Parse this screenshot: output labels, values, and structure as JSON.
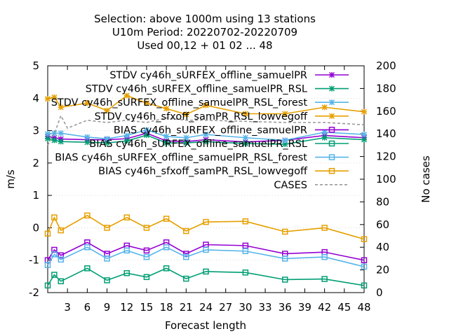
{
  "chart_data": {
    "type": "line",
    "title_lines": [
      "Selection: above 1000m using    13 stations",
      "U10m   Period: 20220702-20220709",
      "Used  00,12  + 01 02 ... 48"
    ],
    "xlabel": "Forecast length",
    "ylabel": "m/s",
    "y2label": "No cases",
    "xlim": [
      0,
      48
    ],
    "ylim": [
      -2,
      5
    ],
    "y2lim": [
      0,
      200
    ],
    "xticks": [
      3,
      6,
      9,
      12,
      15,
      18,
      21,
      24,
      27,
      30,
      33,
      36,
      39,
      42,
      45,
      48
    ],
    "yticks": [
      -2,
      -1,
      0,
      1,
      2,
      3,
      4,
      5
    ],
    "y2ticks": [
      0,
      20,
      40,
      60,
      80,
      100,
      120,
      140,
      160,
      180,
      200
    ],
    "x": [
      0,
      1,
      2,
      6,
      9,
      12,
      15,
      18,
      21,
      24,
      30,
      36,
      42,
      48
    ],
    "legend_position": "top-right",
    "series": [
      {
        "name": "STDV cy46h_sURFEX_offline_samuelPR",
        "color": "#9400d3",
        "marker": "x",
        "axis": "left",
        "values": [
          2.82,
          2.78,
          2.74,
          2.72,
          2.72,
          2.75,
          2.92,
          2.68,
          2.66,
          2.72,
          2.65,
          2.7,
          2.85,
          2.78
        ]
      },
      {
        "name": "STDV cy46h_sURFEX_offline_samuelPR_RSL",
        "color": "#009e73",
        "marker": "x",
        "axis": "left",
        "values": [
          2.75,
          2.7,
          2.66,
          2.64,
          2.62,
          2.68,
          2.86,
          2.62,
          2.62,
          2.66,
          2.6,
          2.58,
          2.78,
          2.72
        ]
      },
      {
        "name": "STDV cy46h_sURFEX_offline_samuelPR_RSL_forest",
        "color": "#56b4e9",
        "marker": "x",
        "axis": "left",
        "values": [
          2.9,
          2.92,
          2.92,
          2.8,
          2.75,
          2.85,
          3.02,
          2.82,
          2.78,
          2.88,
          2.78,
          2.7,
          2.95,
          2.88
        ]
      },
      {
        "name": "STDV cy46h_sfxoff_samPR_RSL_lowvegoff",
        "color": "#e69f00",
        "marker": "x",
        "axis": "left",
        "values": [
          3.98,
          4.03,
          3.72,
          3.85,
          3.62,
          4.08,
          3.85,
          3.68,
          3.5,
          3.78,
          3.52,
          3.52,
          3.72,
          3.58
        ]
      },
      {
        "name": "BIAS cy46h_sURFEX_offline_samuelPR",
        "color": "#9400d3",
        "marker": "square",
        "axis": "left",
        "values": [
          -1.0,
          -0.68,
          -0.85,
          -0.45,
          -0.8,
          -0.55,
          -0.7,
          -0.45,
          -0.8,
          -0.52,
          -0.55,
          -0.8,
          -0.75,
          -1.0
        ]
      },
      {
        "name": "BIAS cy46h_sURFEX_offline_samuelPR_RSL",
        "color": "#009e73",
        "marker": "square",
        "axis": "left",
        "values": [
          -1.78,
          -1.45,
          -1.65,
          -1.25,
          -1.62,
          -1.4,
          -1.52,
          -1.25,
          -1.57,
          -1.35,
          -1.38,
          -1.6,
          -1.58,
          -1.78
        ]
      },
      {
        "name": "BIAS cy46h_sURFEX_offline_samuelPR_RSL_forest",
        "color": "#56b4e9",
        "marker": "square",
        "axis": "left",
        "values": [
          -1.15,
          -0.82,
          -0.98,
          -0.6,
          -0.95,
          -0.7,
          -0.9,
          -0.6,
          -0.9,
          -0.68,
          -0.72,
          -0.95,
          -0.9,
          -1.2
        ]
      },
      {
        "name": "BIAS cy46h_sfxoff_samPR_RSL_lowvegoff",
        "color": "#e69f00",
        "marker": "square",
        "axis": "left",
        "values": [
          -0.18,
          0.32,
          -0.08,
          0.38,
          0.0,
          0.32,
          0.0,
          0.28,
          -0.1,
          0.18,
          0.2,
          -0.12,
          0.0,
          -0.35
        ]
      },
      {
        "name": "CASES",
        "color": "#999999",
        "marker": "none",
        "dashed": true,
        "axis": "right",
        "x": [
          0,
          1,
          2,
          3,
          6,
          9,
          12,
          15,
          18,
          21,
          24,
          30,
          36,
          42,
          48
        ],
        "values": [
          130,
          140,
          156,
          145,
          152,
          150,
          152,
          150,
          154,
          152,
          152,
          151,
          150,
          150,
          148
        ]
      }
    ]
  }
}
